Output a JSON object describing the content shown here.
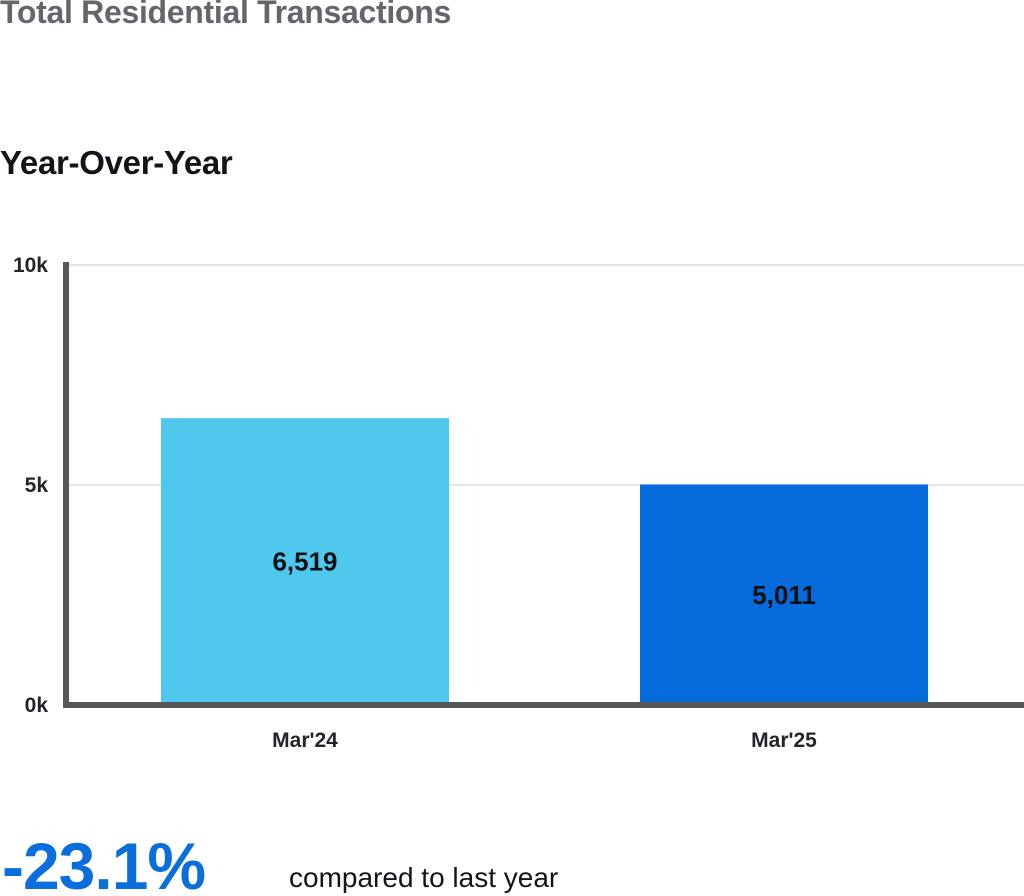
{
  "page": {
    "title": "Total Residential Transactions",
    "section_title": "Year-Over-Year"
  },
  "summary": {
    "change_value": "-23.1%",
    "change_text": "compared to last year",
    "change_color": "#0a6fdc"
  },
  "chart_data": {
    "type": "bar",
    "title": "",
    "xlabel": "",
    "ylabel": "",
    "categories": [
      "Mar'24",
      "Mar'25"
    ],
    "values": [
      6519,
      5011
    ],
    "value_labels": [
      "6,519",
      "5,011"
    ],
    "bar_colors": [
      "#50c8ee",
      "#066bda"
    ],
    "ylim": [
      0,
      10000
    ],
    "yticks": [
      0,
      5000,
      10000
    ],
    "ytick_labels": [
      "0k",
      "5k",
      "10k"
    ],
    "grid": true,
    "legend": "none"
  }
}
